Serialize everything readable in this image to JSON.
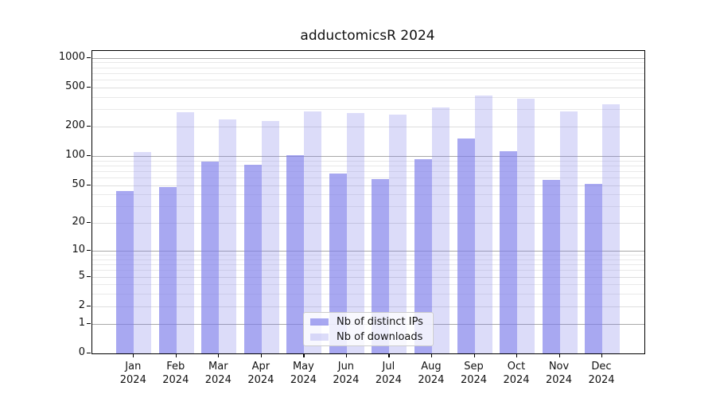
{
  "chart_data": {
    "type": "bar",
    "title": "adductomicsR 2024",
    "year_label": "2024",
    "categories": [
      "Jan",
      "Feb",
      "Mar",
      "Apr",
      "May",
      "Jun",
      "Jul",
      "Aug",
      "Sep",
      "Oct",
      "Nov",
      "Dec"
    ],
    "series": [
      {
        "name": "Nb of distinct IPs",
        "color": "rgba(125,125,234,0.67)",
        "values": [
          44,
          48,
          88,
          82,
          103,
          66,
          58,
          93,
          151,
          112,
          57,
          52
        ]
      },
      {
        "name": "Nb of downloads",
        "color": "rgba(125,125,234,0.27)",
        "values": [
          111,
          280,
          236,
          228,
          285,
          274,
          266,
          317,
          419,
          386,
          289,
          337
        ]
      }
    ],
    "yscale": "log10(1+v)",
    "ylim": [
      0,
      1000
    ],
    "y_ticks": [
      1000,
      500,
      200,
      100,
      50,
      20,
      10,
      5,
      2,
      1,
      0
    ],
    "gridlines": {
      "major": [
        1,
        10,
        100,
        1000
      ],
      "labeled_minor": [
        2,
        5,
        20,
        50,
        200,
        500
      ],
      "minor": [
        3,
        4,
        6,
        7,
        8,
        9,
        30,
        40,
        60,
        70,
        80,
        90,
        300,
        400,
        600,
        700,
        800,
        900
      ]
    },
    "grid_colors": {
      "major": "#a8a8a8",
      "labeled_minor": "#dedede",
      "minor": "#e9e9e9"
    },
    "legend_position": "lower center"
  }
}
